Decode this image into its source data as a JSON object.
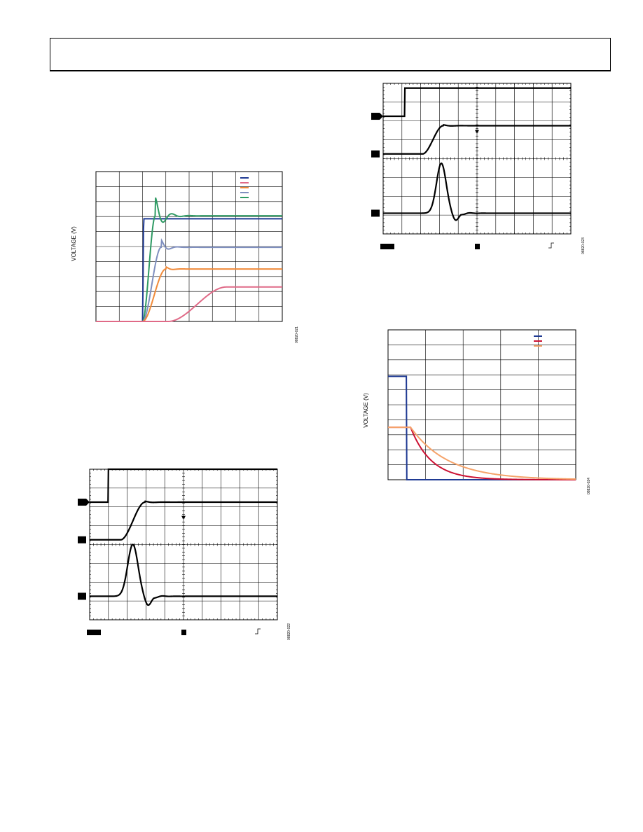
{
  "colors": {
    "trace_black": "#000000",
    "navy": "#1f3a93",
    "green": "#2e9a63",
    "slate": "#7f8fbf",
    "orange": "#f08a3a",
    "pink": "#e06a87",
    "red": "#cc1133",
    "peach": "#f5a36a"
  },
  "chart_data": [
    {
      "id": "fig21",
      "type": "line",
      "ylabel": "VOLTAGE (V)",
      "figure_code": "08820-021",
      "grid": true,
      "legend_position": "top-right",
      "grid_divisions": {
        "x": 8,
        "y": 10
      },
      "xlim": [
        0,
        8
      ],
      "ylim": [
        0,
        10
      ],
      "series": [
        {
          "color_key": "navy",
          "step_at": 2.0,
          "final": 6.85,
          "rise": 0.05,
          "overshoot": 0.0,
          "damping": 0
        },
        {
          "color_key": "green",
          "step_at": 2.0,
          "final": 7.05,
          "rise": 0.55,
          "overshoot": 1.25,
          "damping": 2.2
        },
        {
          "color_key": "slate",
          "step_at": 2.0,
          "final": 4.95,
          "rise": 0.8,
          "overshoot": 0.5,
          "damping": 3.0
        },
        {
          "color_key": "orange",
          "step_at": 2.0,
          "final": 3.5,
          "rise": 1.0,
          "overshoot": 0.15,
          "damping": 3.5
        },
        {
          "color_key": "pink",
          "step_at": 3.1,
          "final": 2.3,
          "rise": 2.5,
          "overshoot": 0.0,
          "damping": 0
        }
      ],
      "legend_swatches": [
        "navy",
        "pink",
        "orange",
        "slate",
        "green"
      ]
    },
    {
      "id": "fig22",
      "type": "scope",
      "figure_code": "08820-022",
      "grid": true,
      "grid_divisions": {
        "x": 10,
        "y": 8
      },
      "channels": [
        {
          "kind": "step",
          "base_div": 1.75,
          "high_div": 0.0,
          "step_at": 1.0
        },
        {
          "kind": "rise",
          "base_div": 3.75,
          "final_div": 1.75,
          "start": 1.65,
          "rise": 1.3,
          "overshoot": 0.05
        },
        {
          "kind": "pulse",
          "base_div": 6.75,
          "peak_div": 4.0,
          "center": 2.3,
          "width": 0.85,
          "undershoot": 0.25
        }
      ],
      "marker_labels": [
        "",
        "",
        ""
      ],
      "footer_box": true,
      "trigger_glyph": "↗"
    },
    {
      "id": "fig23",
      "type": "scope",
      "figure_code": "08820-023",
      "grid": true,
      "grid_divisions": {
        "x": 10,
        "y": 8
      },
      "channels": [
        {
          "kind": "step",
          "base_div": 1.75,
          "high_div": 0.25,
          "step_at": 1.15
        },
        {
          "kind": "rise",
          "base_div": 3.75,
          "final_div": 2.25,
          "start": 2.1,
          "rise": 1.1,
          "overshoot": 0.05
        },
        {
          "kind": "pulse",
          "base_div": 6.9,
          "peak_div": 4.25,
          "center": 3.1,
          "width": 0.8,
          "undershoot": 0.2
        }
      ],
      "marker_labels": [
        "",
        "",
        ""
      ],
      "footer_box": true,
      "trigger_glyph": "↗"
    },
    {
      "id": "fig24",
      "type": "line",
      "ylabel": "VOLTAGE (V)",
      "figure_code": "08820-024",
      "grid": true,
      "legend_position": "top-right",
      "grid_divisions": {
        "x": 5,
        "y": 10
      },
      "xlim": [
        0,
        5
      ],
      "ylim": [
        0,
        10
      ],
      "series": [
        {
          "color_key": "navy",
          "kind": "fall_step",
          "high": 6.9,
          "fall_at": 0.5
        },
        {
          "color_key": "red",
          "kind": "decay",
          "start": 3.5,
          "t0": 0.6,
          "tau": 0.55
        },
        {
          "color_key": "peach",
          "kind": "decay",
          "start": 3.5,
          "t0": 0.6,
          "tau": 1.0
        }
      ],
      "legend_swatches": [
        "navy",
        "red",
        "peach"
      ]
    }
  ]
}
